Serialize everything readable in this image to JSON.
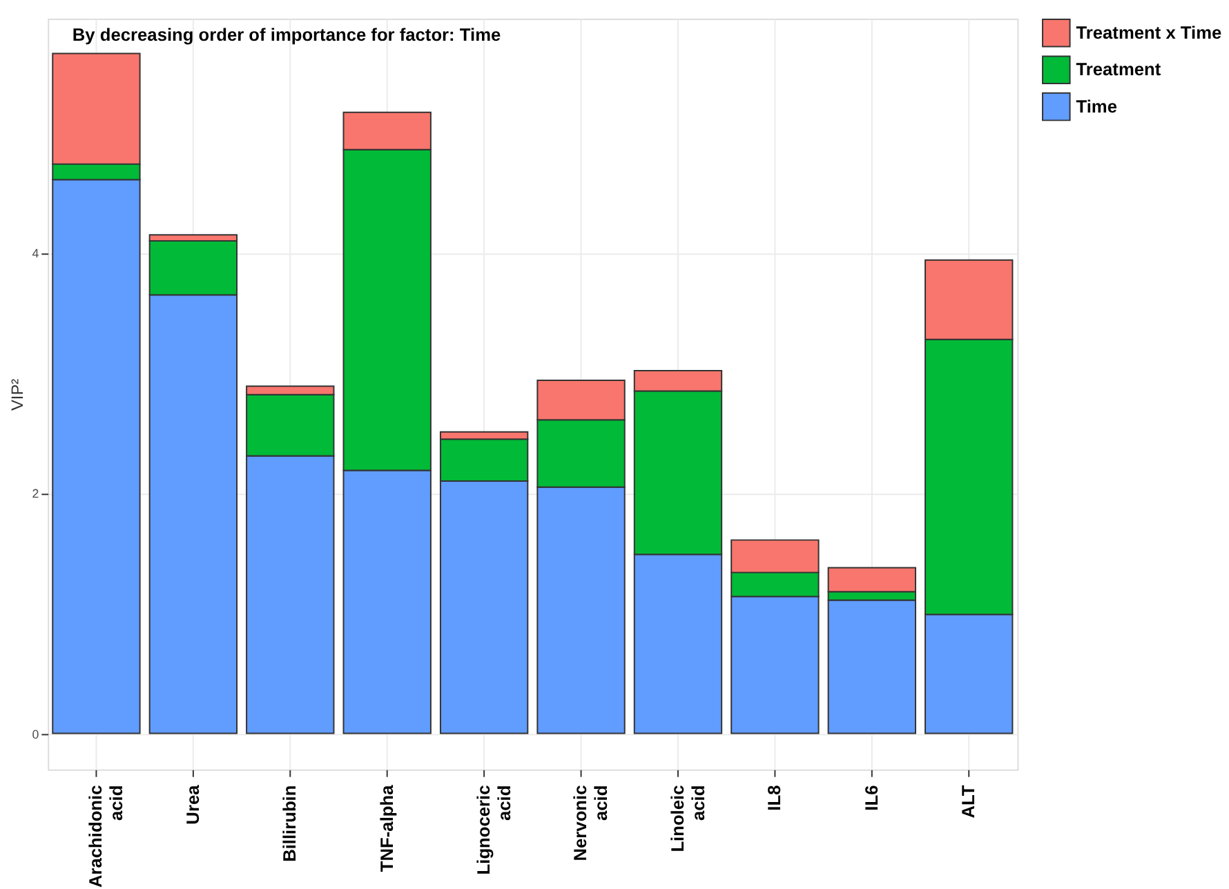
{
  "chart_data": {
    "type": "bar",
    "title": "By decreasing order of importance for factor: Time",
    "ylabel": "VIP²",
    "categories": [
      "Arachidonic acid",
      "Urea",
      "Billirubin",
      "TNF-alpha",
      "Lignoceric acid",
      "Nervonic acid",
      "Linoleic acid",
      "IL8",
      "IL6",
      "ALT"
    ],
    "stacked": true,
    "series": [
      {
        "name": "Time",
        "color": "#619cff",
        "values": [
          4.61,
          3.65,
          2.31,
          2.19,
          2.1,
          2.05,
          1.49,
          1.14,
          1.11,
          0.99
        ]
      },
      {
        "name": "Treatment",
        "color": "#00ba38",
        "values": [
          0.13,
          0.45,
          0.51,
          2.67,
          0.35,
          0.56,
          1.36,
          0.2,
          0.07,
          2.29
        ]
      },
      {
        "name": "Treatment x Time",
        "color": "#f8766d",
        "values": [
          0.92,
          0.05,
          0.07,
          0.31,
          0.06,
          0.33,
          0.17,
          0.27,
          0.2,
          0.66
        ]
      }
    ],
    "ylim": [
      -0.3,
      5.95
    ],
    "yticks": [
      0,
      2,
      4
    ],
    "grid": true,
    "legend": "right"
  }
}
